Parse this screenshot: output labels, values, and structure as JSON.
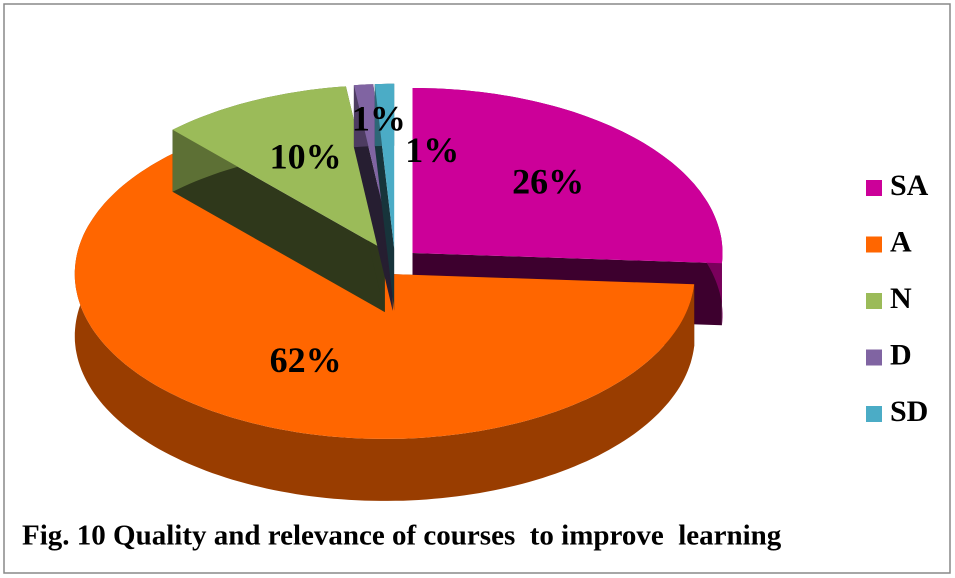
{
  "chart_data": {
    "type": "pie",
    "title": "Fig. 10 Quality and relevance of courses  to improve  learning",
    "categories": [
      "SA",
      "A",
      "N",
      "D",
      "SD"
    ],
    "values": [
      26,
      62,
      10,
      1,
      1
    ],
    "value_labels": [
      "26%",
      "62%",
      "10%",
      "1%",
      "1%"
    ],
    "colors": [
      "#cc0099",
      "#ff6600",
      "#9bbb59",
      "#8064a2",
      "#4bacc6"
    ],
    "legend": "right",
    "exploded": true,
    "three_d": true
  }
}
